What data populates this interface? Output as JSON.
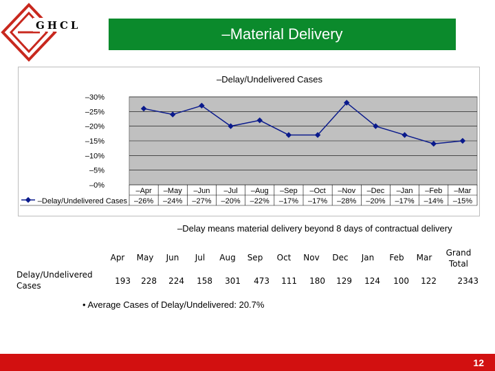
{
  "logo": {
    "text": "GHCL"
  },
  "header": {
    "title": "–Material Delivery"
  },
  "chart_data": {
    "type": "line",
    "title": "–Delay/Undelivered Cases",
    "categories": [
      "–Apr",
      "–May",
      "–Jun",
      "–Jul",
      "–Aug",
      "–Sep",
      "–Oct",
      "–Nov",
      "–Dec",
      "–Jan",
      "–Feb",
      "–Mar"
    ],
    "series": [
      {
        "name": "–Delay/Undelivered Cases",
        "values": [
          26,
          24,
          27,
          20,
          22,
          17,
          17,
          28,
          20,
          17,
          14,
          15
        ],
        "labels": [
          "–26%",
          "–24%",
          "–27%",
          "–20%",
          "–22%",
          "–17%",
          "–17%",
          "–28%",
          "–20%",
          "–17%",
          "–14%",
          "–15%"
        ]
      }
    ],
    "ylim": [
      0,
      30
    ],
    "yticks": [
      "–0%",
      "–5%",
      "–10%",
      "–15%",
      "–20%",
      "–25%",
      "–30%"
    ],
    "plot_background": "#c0c0c0",
    "line_color": "#0a1a8c",
    "grid": true
  },
  "note": "–Delay means material delivery beyond 8 days of contractual delivery",
  "count_table": {
    "row_label": "Delay/Undelivered Cases",
    "headers": [
      "Apr",
      "May",
      "Jun",
      "Jul",
      "Aug",
      "Sep",
      "Oct",
      "Nov",
      "Dec",
      "Jan",
      "Feb",
      "Mar",
      "Grand Total"
    ],
    "values": [
      "193",
      "228",
      "224",
      "158",
      "301",
      "473",
      "111",
      "180",
      "129",
      "124",
      "100",
      "122",
      "2343"
    ]
  },
  "summary": "• Average Cases of Delay/Undelivered: 20.7%",
  "footer": {
    "page_number": "12"
  },
  "colors": {
    "title_bar": "#0b8a2c",
    "footer_bar": "#d21010",
    "logo": "#c8281e"
  }
}
